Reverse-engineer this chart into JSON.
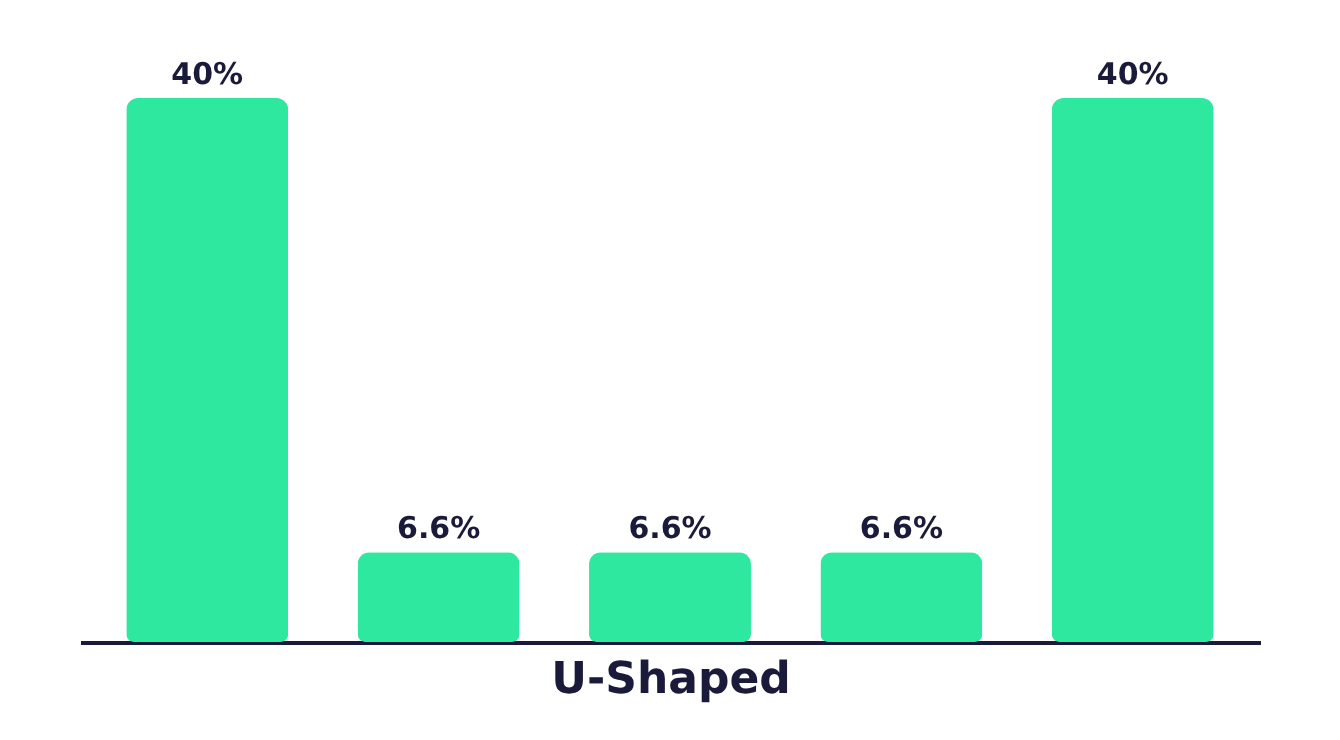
{
  "chart_data": {
    "type": "bar",
    "xlabel": "U-Shaped",
    "categories": [
      null,
      null,
      null,
      null,
      null
    ],
    "values": [
      40,
      6.6,
      6.6,
      6.6,
      40
    ],
    "value_labels": [
      "40%",
      "6.6%",
      "6.6%",
      "6.6%",
      "40%"
    ],
    "color": "#2ee8a0",
    "tick_labels": false
  }
}
